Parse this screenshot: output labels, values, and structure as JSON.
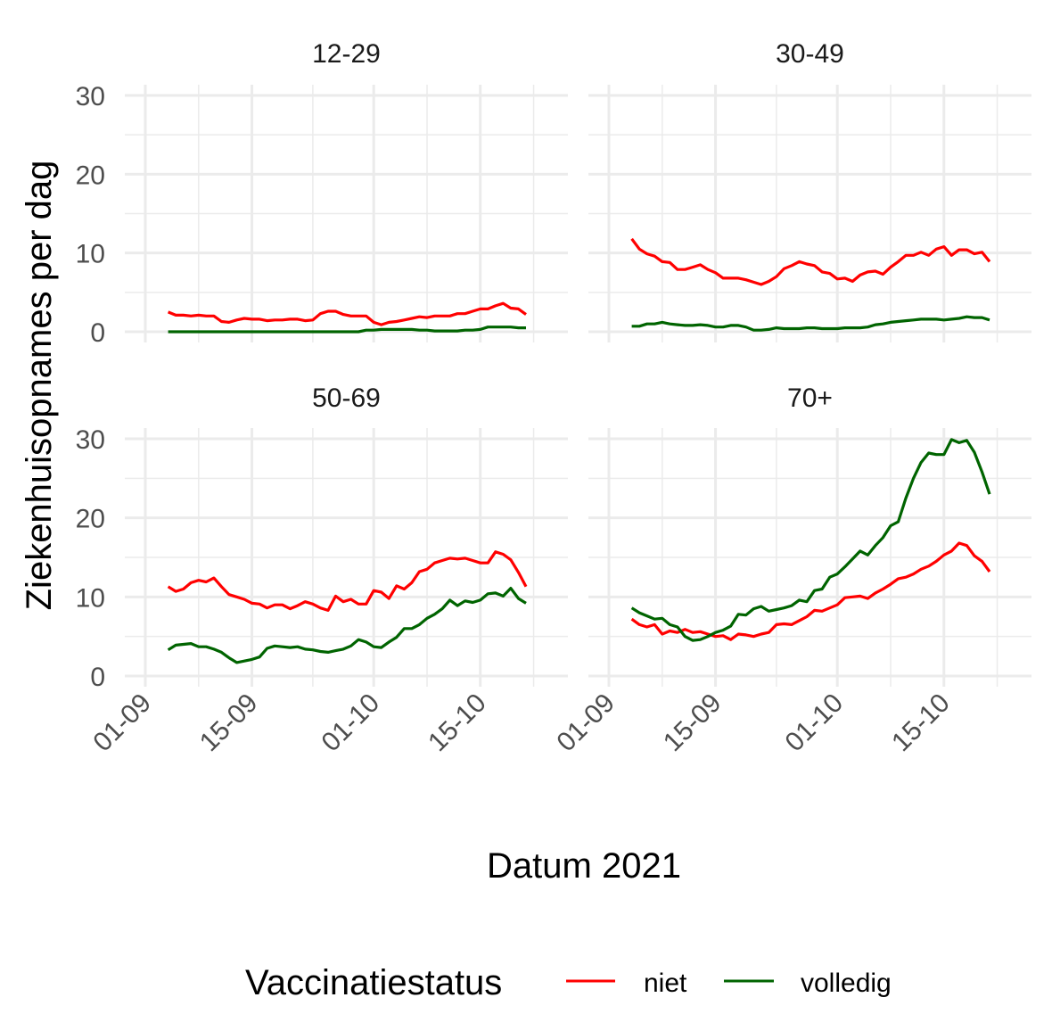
{
  "chart_data": {
    "type": "line",
    "title": "",
    "xlabel": "Datum 2021",
    "ylabel": "Ziekenhuisopnames per dag",
    "ylim": [
      0,
      30
    ],
    "yticks": [
      0,
      10,
      20,
      30
    ],
    "xticks": [
      {
        "day": 0,
        "label": "01-09"
      },
      {
        "day": 14,
        "label": "15-09"
      },
      {
        "day": 30,
        "label": "01-10"
      },
      {
        "day": 44,
        "label": "15-10"
      }
    ],
    "x_start_day": 3,
    "x_end_day": 50,
    "x_note": "days since 01-09",
    "grid": true,
    "legend": {
      "title": "Vaccinatiestatus",
      "position": "bottom",
      "entries": [
        {
          "name": "niet",
          "color": "#ff0000"
        },
        {
          "name": "volledig",
          "color": "#006400"
        }
      ]
    },
    "facets": [
      {
        "label": "12-29",
        "series": [
          {
            "name": "niet",
            "values": [
              2.5,
              2.1,
              2.1,
              2.0,
              2.1,
              2.0,
              2.0,
              1.3,
              1.2,
              1.5,
              1.7,
              1.6,
              1.6,
              1.4,
              1.5,
              1.5,
              1.6,
              1.6,
              1.4,
              1.5,
              2.3,
              2.6,
              2.6,
              2.2,
              2.0,
              2.0,
              2.0,
              1.2,
              0.9,
              1.2,
              1.3,
              1.5,
              1.7,
              1.9,
              1.8,
              2.0,
              2.0,
              2.0,
              2.3,
              2.3,
              2.6,
              2.9,
              2.9,
              3.3,
              3.6,
              3.0,
              2.9,
              2.2
            ]
          },
          {
            "name": "volledig",
            "values": [
              0,
              0,
              0,
              0,
              0,
              0,
              0,
              0,
              0,
              0,
              0,
              0,
              0,
              0,
              0,
              0,
              0,
              0,
              0,
              0,
              0,
              0,
              0,
              0,
              0,
              0,
              0.2,
              0.2,
              0.3,
              0.3,
              0.3,
              0.3,
              0.3,
              0.2,
              0.2,
              0.1,
              0.1,
              0.1,
              0.1,
              0.2,
              0.2,
              0.3,
              0.6,
              0.6,
              0.6,
              0.6,
              0.5,
              0.5
            ]
          }
        ]
      },
      {
        "label": "30-49",
        "series": [
          {
            "name": "niet",
            "values": [
              11.8,
              10.5,
              9.9,
              9.6,
              8.9,
              8.8,
              7.9,
              7.9,
              8.2,
              8.5,
              7.9,
              7.5,
              6.8,
              6.8,
              6.8,
              6.6,
              6.3,
              6.0,
              6.4,
              7.0,
              8.0,
              8.4,
              8.9,
              8.6,
              8.4,
              7.6,
              7.4,
              6.7,
              6.8,
              6.4,
              7.2,
              7.6,
              7.7,
              7.3,
              8.2,
              8.9,
              9.7,
              9.7,
              10.1,
              9.7,
              10.5,
              10.8,
              9.7,
              10.4,
              10.4,
              9.9,
              10.1,
              8.9
            ]
          },
          {
            "name": "volledig",
            "values": [
              0.7,
              0.7,
              1.0,
              1.0,
              1.2,
              1.0,
              0.9,
              0.8,
              0.8,
              0.9,
              0.8,
              0.6,
              0.6,
              0.8,
              0.8,
              0.6,
              0.2,
              0.2,
              0.3,
              0.5,
              0.4,
              0.4,
              0.4,
              0.5,
              0.5,
              0.4,
              0.4,
              0.4,
              0.5,
              0.5,
              0.5,
              0.6,
              0.9,
              1.0,
              1.2,
              1.3,
              1.4,
              1.5,
              1.6,
              1.6,
              1.6,
              1.5,
              1.6,
              1.7,
              1.9,
              1.8,
              1.8,
              1.5
            ]
          }
        ]
      },
      {
        "label": "50-69",
        "series": [
          {
            "name": "niet",
            "values": [
              11.3,
              10.7,
              11.0,
              11.8,
              12.1,
              11.9,
              12.4,
              11.3,
              10.3,
              10.0,
              9.7,
              9.2,
              9.1,
              8.6,
              9.0,
              9.0,
              8.5,
              8.9,
              9.4,
              9.1,
              8.6,
              8.3,
              10.1,
              9.4,
              9.7,
              9.1,
              9.1,
              10.8,
              10.6,
              9.8,
              11.4,
              11.0,
              11.8,
              13.2,
              13.5,
              14.3,
              14.6,
              14.9,
              14.8,
              14.9,
              14.6,
              14.3,
              14.3,
              15.7,
              15.4,
              14.7,
              13.1,
              11.3
            ]
          },
          {
            "name": "volledig",
            "values": [
              3.3,
              3.9,
              4.0,
              4.1,
              3.7,
              3.7,
              3.4,
              3.0,
              2.3,
              1.7,
              1.9,
              2.1,
              2.4,
              3.5,
              3.8,
              3.7,
              3.6,
              3.7,
              3.4,
              3.3,
              3.1,
              3.0,
              3.2,
              3.4,
              3.8,
              4.6,
              4.3,
              3.7,
              3.6,
              4.3,
              4.9,
              6.0,
              6.0,
              6.5,
              7.3,
              7.8,
              8.5,
              9.6,
              8.9,
              9.5,
              9.3,
              9.6,
              10.4,
              10.5,
              10.1,
              11.1,
              9.8,
              9.2
            ]
          }
        ]
      },
      {
        "label": "70+",
        "series": [
          {
            "name": "niet",
            "values": [
              7.2,
              6.5,
              6.2,
              6.5,
              5.3,
              5.7,
              5.5,
              5.9,
              5.5,
              5.6,
              5.3,
              5.0,
              5.1,
              4.6,
              5.3,
              5.2,
              5.0,
              5.3,
              5.5,
              6.5,
              6.6,
              6.5,
              7.0,
              7.5,
              8.3,
              8.2,
              8.6,
              9.0,
              9.9,
              10.0,
              10.1,
              9.8,
              10.5,
              11.0,
              11.6,
              12.3,
              12.5,
              12.9,
              13.5,
              13.9,
              14.5,
              15.3,
              15.8,
              16.8,
              16.5,
              15.2,
              14.5,
              13.2
            ]
          },
          {
            "name": "volledig",
            "values": [
              8.6,
              8.0,
              7.6,
              7.2,
              7.3,
              6.5,
              6.2,
              5.0,
              4.5,
              4.6,
              5.0,
              5.5,
              5.8,
              6.3,
              7.8,
              7.7,
              8.5,
              8.8,
              8.2,
              8.4,
              8.6,
              8.9,
              9.6,
              9.4,
              10.8,
              11.0,
              12.5,
              12.9,
              13.8,
              14.8,
              15.8,
              15.3,
              16.5,
              17.5,
              19.0,
              19.5,
              22.5,
              25.0,
              27.0,
              28.2,
              28.0,
              28.0,
              29.9,
              29.5,
              29.8,
              28.3,
              25.8,
              23.0
            ]
          }
        ]
      }
    ]
  }
}
